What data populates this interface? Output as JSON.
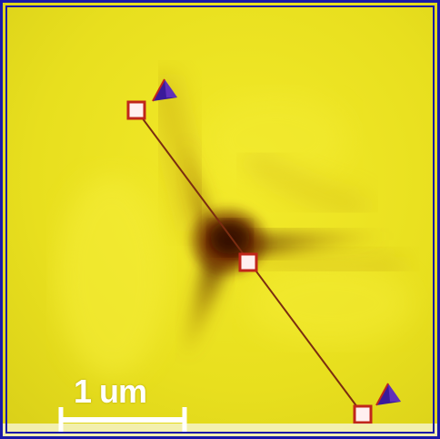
{
  "scale_bar": {
    "label": "1 um"
  },
  "colors": {
    "background": "#e9e020",
    "border": "#1a1aa8",
    "line": "#7a2d10",
    "marker_fill": "#fff0f0",
    "marker_stroke": "#c0261a",
    "arrow": "#3a1a9a"
  },
  "markers": [
    "start-marker",
    "center-marker",
    "end-marker"
  ]
}
